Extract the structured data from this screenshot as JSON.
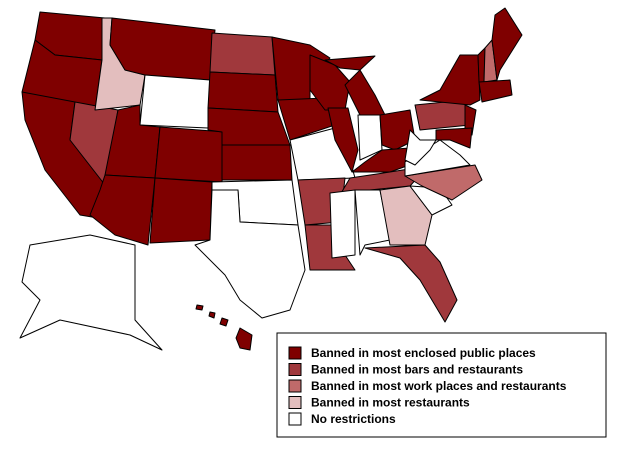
{
  "legend": {
    "items": [
      {
        "label": "Banned in most enclosed public places",
        "color": "#7f0000"
      },
      {
        "label": "Banned in most bars and restaurants",
        "color": "#a0383c"
      },
      {
        "label": "Banned in most work places and restaurants",
        "color": "#c06a6a"
      },
      {
        "label": "Banned in most restaurants",
        "color": "#e3bebe"
      },
      {
        "label": "No restrictions",
        "color": "#ffffff"
      }
    ]
  }
}
